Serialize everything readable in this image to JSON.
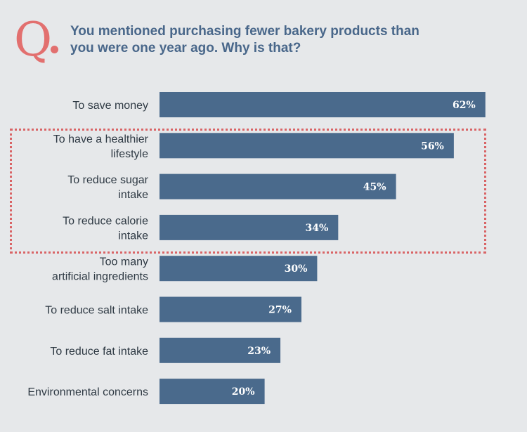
{
  "header": {
    "q_letter": "Q",
    "question": "You mentioned purchasing fewer bakery products than you were one year ago. Why is that?"
  },
  "colors": {
    "bar": "#4a6a8c",
    "accent": "#e2706f",
    "background": "#e6e8ea"
  },
  "chart_data": {
    "type": "bar",
    "orientation": "horizontal",
    "categories": [
      [
        "To save money"
      ],
      [
        "To have a healthier",
        "lifestyle"
      ],
      [
        "To reduce sugar",
        "intake"
      ],
      [
        "To reduce calorie",
        "intake"
      ],
      [
        "Too many",
        "artificial ingredients"
      ],
      [
        "To reduce salt intake"
      ],
      [
        "To reduce fat intake"
      ],
      [
        "Environmental concerns"
      ]
    ],
    "values": [
      62,
      56,
      45,
      34,
      30,
      27,
      23,
      20
    ],
    "value_labels": [
      "62%",
      "56%",
      "45%",
      "34%",
      "30%",
      "27%",
      "23%",
      "20%"
    ],
    "unit": "%",
    "highlighted_categories": [
      1,
      2,
      3
    ],
    "grid": false,
    "legend": "none"
  }
}
